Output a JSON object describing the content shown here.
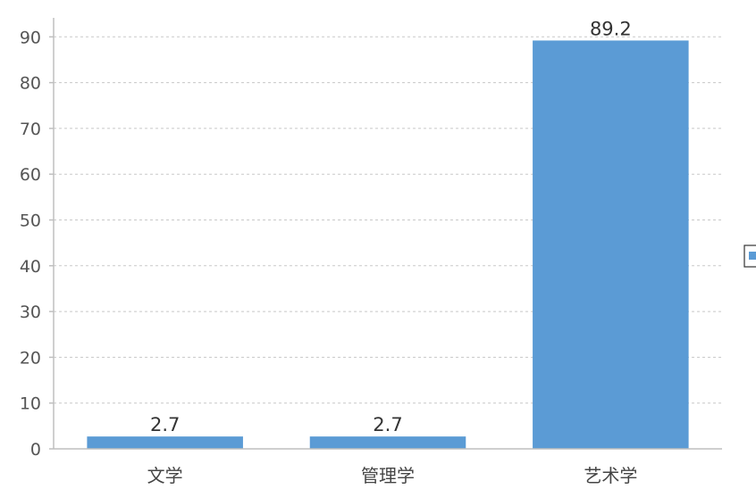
{
  "chart_data": {
    "type": "bar",
    "categories": [
      "文学",
      "管理学",
      "艺术学"
    ],
    "values": [
      2.7,
      2.7,
      89.2
    ],
    "data_labels": [
      "2.7",
      "2.7",
      "89.2"
    ],
    "yticks": [
      "0",
      "10",
      "20",
      "30",
      "40",
      "50",
      "60",
      "70",
      "80",
      "90"
    ],
    "ylim": [
      0,
      95
    ],
    "grid": true,
    "legend_placement": "right",
    "bar_color": "#5b9bd5"
  }
}
